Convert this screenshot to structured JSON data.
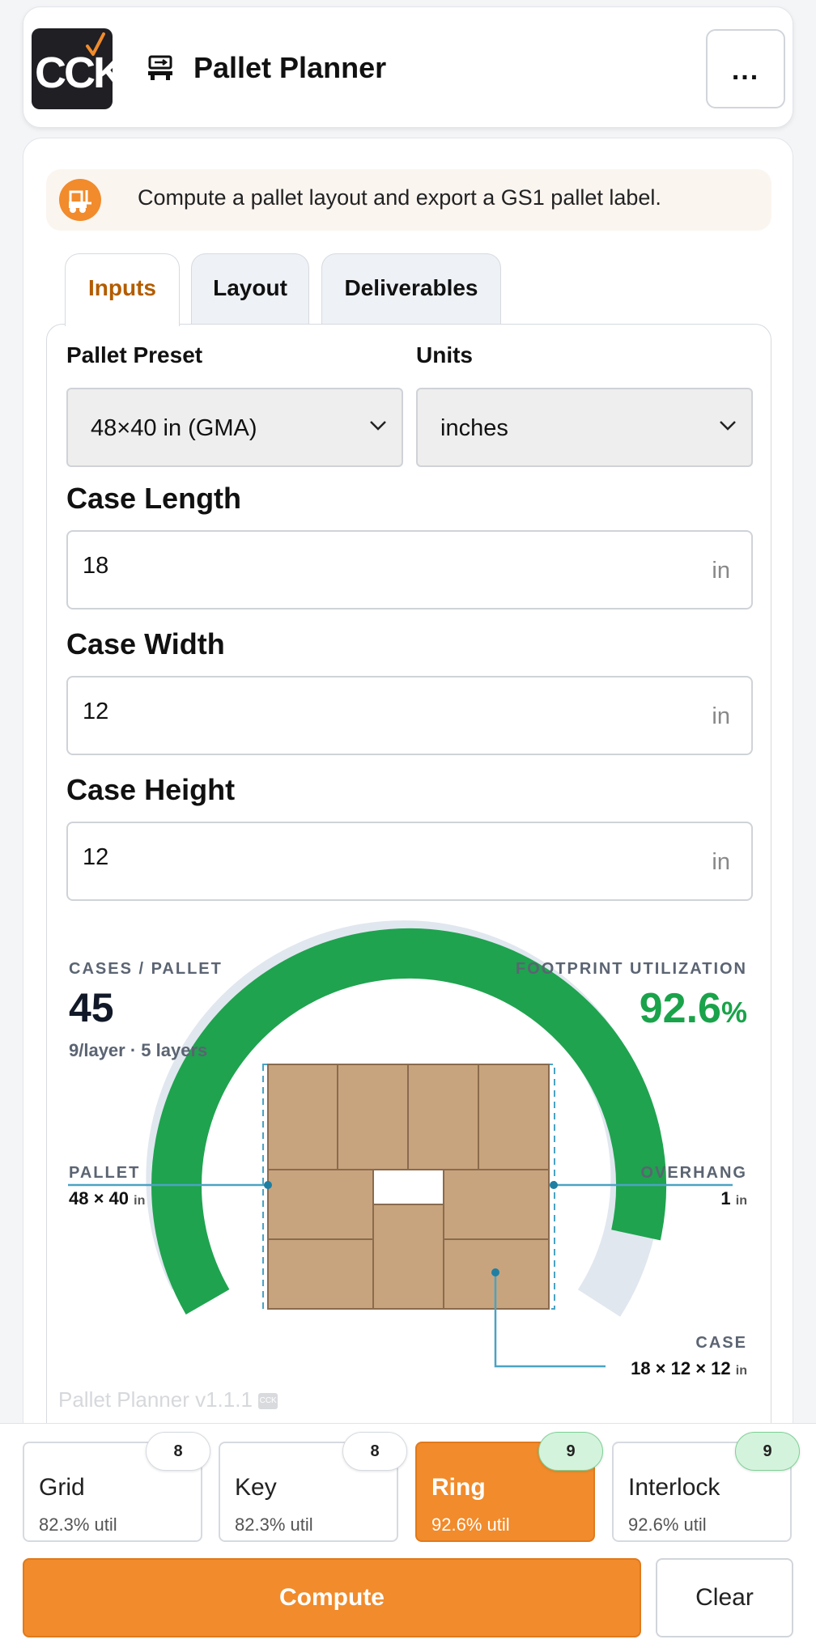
{
  "header": {
    "logo_text": "CCK",
    "title": "Pallet Planner",
    "menu_label": "..."
  },
  "banner": {
    "text": "Compute a pallet layout and export a GS1 pallet label.",
    "icon": "forklift-icon"
  },
  "tabs": [
    {
      "label": "Inputs",
      "active": true
    },
    {
      "label": "Layout",
      "active": false
    },
    {
      "label": "Deliverables",
      "active": false
    }
  ],
  "form": {
    "pallet_preset_label": "Pallet Preset",
    "pallet_preset_value": "48×40 in (GMA)",
    "units_label": "Units",
    "units_value": "inches",
    "case_length_label": "Case Length",
    "case_length_value": "18",
    "case_width_label": "Case Width",
    "case_width_value": "12",
    "case_height_label": "Case Height",
    "case_height_value": "12",
    "unit_suffix": "in"
  },
  "stats": {
    "cases_label": "CASES / PALLET",
    "cases_value": "45",
    "cases_sub": "9/layer · 5 layers",
    "util_label": "FOOTPRINT UTILIZATION",
    "util_value": "92.6",
    "util_suffix": "%",
    "util_fraction": 0.926,
    "pallet_label": "PALLET",
    "pallet_value": "48 × 40",
    "overhang_label": "OVERHANG",
    "overhang_value": "1",
    "case_label": "CASE",
    "case_value": "18 × 12 × 12",
    "unit": "in"
  },
  "footer": {
    "version": "Pallet Planner v1.1.1"
  },
  "options": [
    {
      "name": "Grid",
      "util": "82.3% util",
      "count": "8",
      "active": false
    },
    {
      "name": "Key",
      "util": "82.3% util",
      "count": "8",
      "active": false
    },
    {
      "name": "Ring",
      "util": "92.6% util",
      "count": "9",
      "active": true
    },
    {
      "name": "Interlock",
      "util": "92.6% util",
      "count": "9",
      "active": false
    }
  ],
  "actions": {
    "compute_label": "Compute",
    "clear_label": "Clear"
  },
  "colors": {
    "accent": "#f18b2b",
    "success": "#1aa34a",
    "case_fill": "#c8a47e",
    "guide": "#4aa3c4"
  }
}
